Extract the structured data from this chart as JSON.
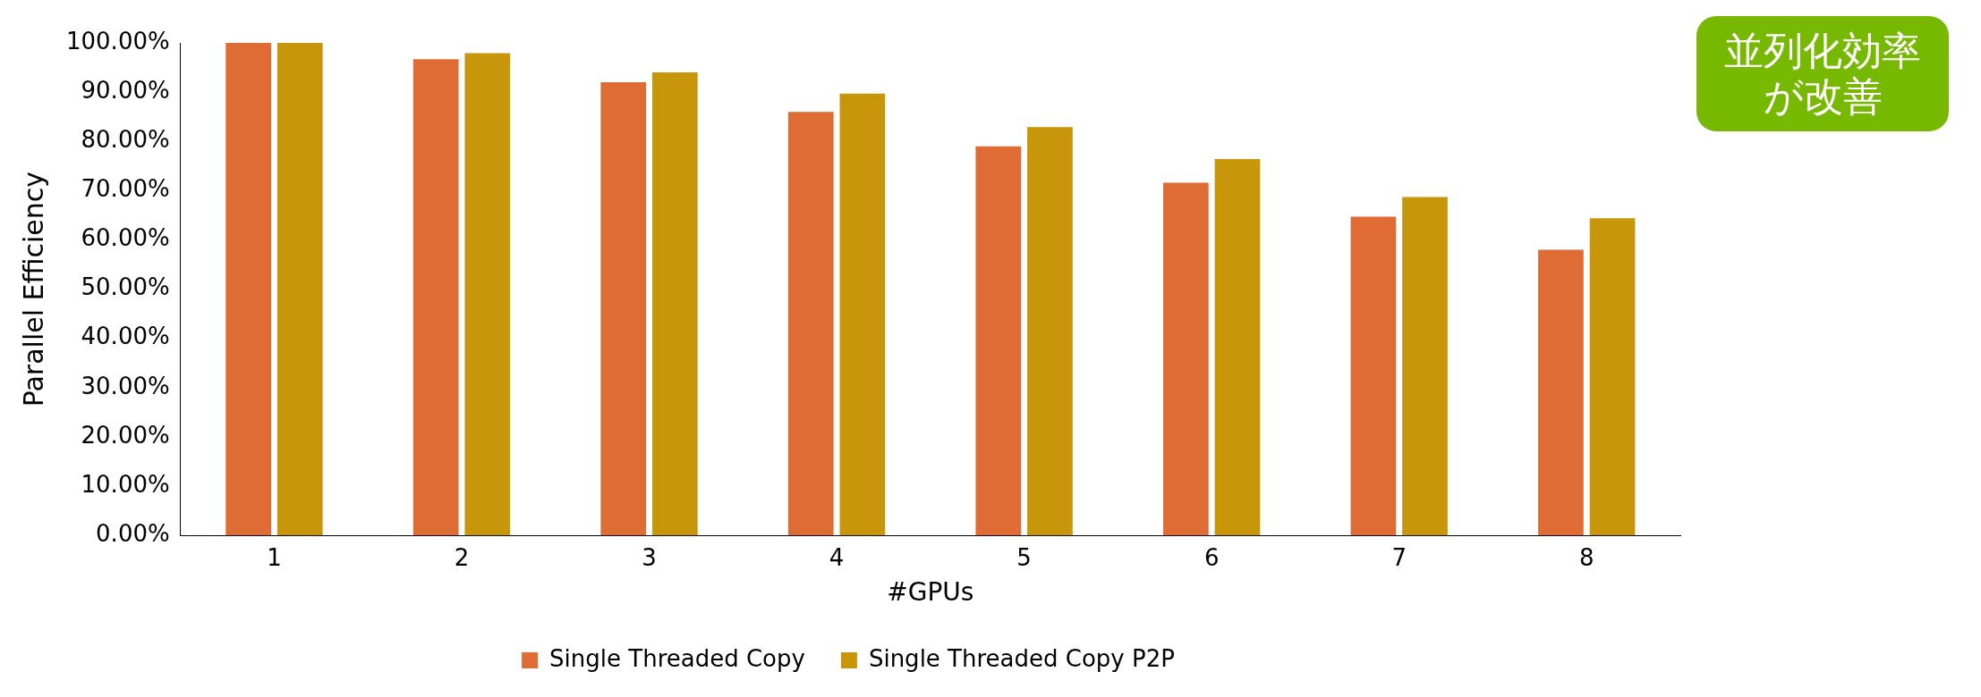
{
  "chart_data": {
    "type": "bar",
    "xlabel": "#GPUs",
    "ylabel": "Parallel Efficiency",
    "categories": [
      "1",
      "2",
      "3",
      "4",
      "5",
      "6",
      "7",
      "8"
    ],
    "series": [
      {
        "name": "Single Threaded Copy",
        "color": "#e06c35",
        "values": [
          100,
          96.7,
          92.0,
          86.0,
          79.0,
          71.6,
          64.7,
          58.0
        ]
      },
      {
        "name": "Single Threaded Copy P2P",
        "color": "#c8960a",
        "values": [
          100,
          97.9,
          94.0,
          89.7,
          82.9,
          76.4,
          68.7,
          64.4
        ]
      }
    ],
    "ylim": [
      0,
      100
    ],
    "yticks": [
      {
        "value": 0,
        "label": "0.00%"
      },
      {
        "value": 10,
        "label": "10.00%"
      },
      {
        "value": 20,
        "label": "20.00%"
      },
      {
        "value": 30,
        "label": "30.00%"
      },
      {
        "value": 40,
        "label": "40.00%"
      },
      {
        "value": 50,
        "label": "50.00%"
      },
      {
        "value": 60,
        "label": "60.00%"
      },
      {
        "value": 70,
        "label": "70.00%"
      },
      {
        "value": 80,
        "label": "80.00%"
      },
      {
        "value": 90,
        "label": "90.00%"
      },
      {
        "value": 100,
        "label": "100.00%"
      }
    ],
    "grid": false,
    "legend": "bottom",
    "annotations": [
      "並列化効率が改善"
    ]
  }
}
